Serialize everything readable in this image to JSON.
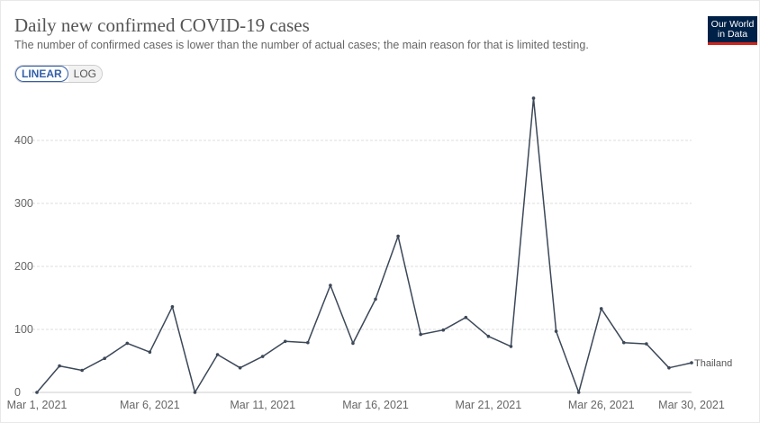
{
  "header": {
    "title": "Daily new confirmed COVID-19 cases",
    "subtitle": "The number of confirmed cases is lower than the number of actual cases; the main reason for that is limited testing.",
    "logo_line1": "Our World",
    "logo_line2": "in Data"
  },
  "scale_toggle": {
    "linear_label": "LINEAR",
    "log_label": "LOG",
    "selected": "LINEAR"
  },
  "colors": {
    "line": "#3c4858",
    "grid": "#dddddd",
    "accent": "#3360a9",
    "logo_bg": "#002147",
    "logo_bar": "#ce261e"
  },
  "chart_data": {
    "type": "line",
    "title": "Daily new confirmed COVID-19 cases",
    "xlabel": "",
    "ylabel": "",
    "x": [
      "2021-03-01",
      "2021-03-02",
      "2021-03-03",
      "2021-03-04",
      "2021-03-05",
      "2021-03-06",
      "2021-03-07",
      "2021-03-08",
      "2021-03-09",
      "2021-03-10",
      "2021-03-11",
      "2021-03-12",
      "2021-03-13",
      "2021-03-14",
      "2021-03-15",
      "2021-03-16",
      "2021-03-17",
      "2021-03-18",
      "2021-03-19",
      "2021-03-20",
      "2021-03-21",
      "2021-03-22",
      "2021-03-23",
      "2021-03-24",
      "2021-03-25",
      "2021-03-26",
      "2021-03-27",
      "2021-03-28",
      "2021-03-29",
      "2021-03-30"
    ],
    "series": [
      {
        "name": "Thailand",
        "values": [
          0,
          42,
          35,
          54,
          78,
          64,
          136,
          0,
          60,
          39,
          57,
          81,
          79,
          170,
          78,
          148,
          248,
          92,
          99,
          119,
          89,
          73,
          467,
          97,
          0,
          133,
          79,
          77,
          39,
          47
        ]
      }
    ],
    "ylim": [
      0,
      470
    ],
    "yticks": [
      0,
      100,
      200,
      300,
      400
    ],
    "yticklabels": [
      "0",
      "100",
      "200",
      "300",
      "400"
    ],
    "xticks": [
      "2021-03-01",
      "2021-03-06",
      "2021-03-11",
      "2021-03-16",
      "2021-03-21",
      "2021-03-26",
      "2021-03-30"
    ],
    "xticklabels": [
      "Mar 1, 2021",
      "Mar 6, 2021",
      "Mar 11, 2021",
      "Mar 16, 2021",
      "Mar 21, 2021",
      "Mar 26, 2021",
      "Mar 30, 2021"
    ],
    "grid": true,
    "legend": "end-of-line label"
  }
}
